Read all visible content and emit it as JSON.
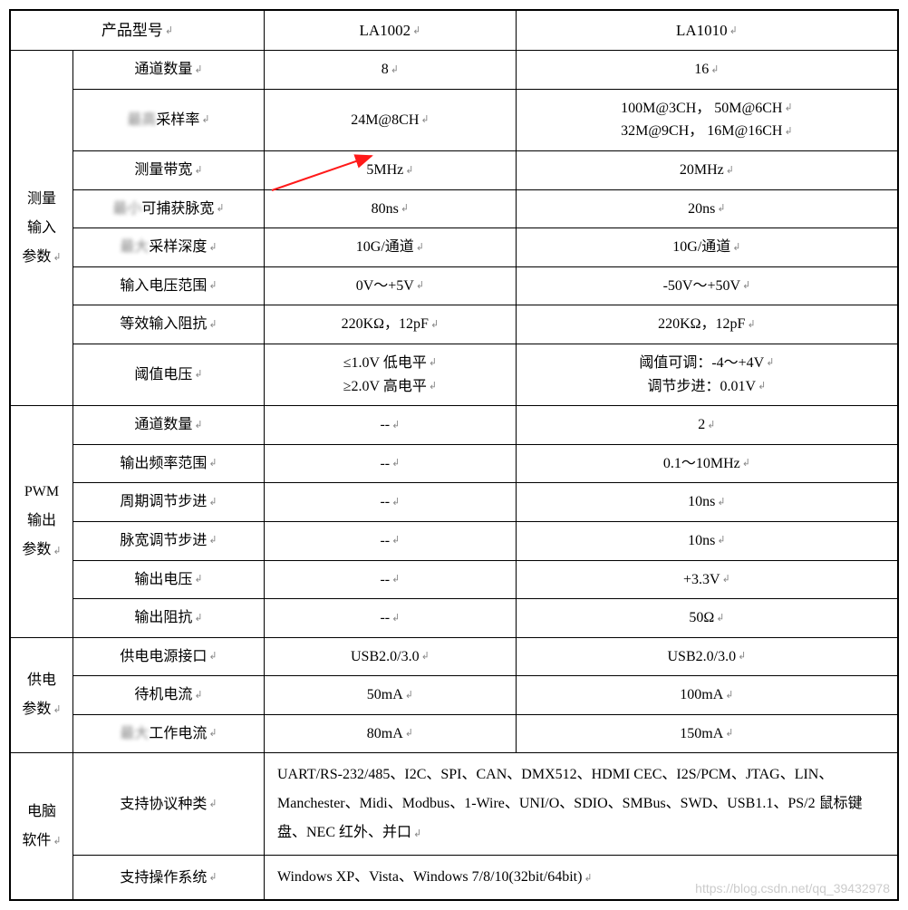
{
  "header": {
    "model_label": "产品型号",
    "model_a": "LA1002",
    "model_b": "LA1010"
  },
  "groups": {
    "measure": "测量\n输入\n参数",
    "pwm": "PWM\n输出\n参数",
    "power": "供电\n参数",
    "software": "电脑\n软件"
  },
  "rows": {
    "channels": {
      "label": "通道数量",
      "a": "8",
      "b": "16"
    },
    "sample_rate": {
      "prefix": "最高",
      "label": "采样率",
      "a": "24M@8CH",
      "b_l1": "100M@3CH， 50M@6CH",
      "b_l2": "32M@9CH， 16M@16CH"
    },
    "bandwidth": {
      "label": "测量带宽",
      "a": "5MHz",
      "b": "20MHz"
    },
    "pulse": {
      "prefix": "最小",
      "label": "可捕获脉宽",
      "a": "80ns",
      "b": "20ns"
    },
    "depth": {
      "prefix": "最大",
      "label": "采样深度",
      "a": "10G/通道",
      "b": "10G/通道"
    },
    "vin": {
      "label": "输入电压范围",
      "a": "0V～+5V",
      "b": "-50V～+50V"
    },
    "zin": {
      "label": "等效输入阻抗",
      "a": "220KΩ，12pF",
      "b": "220KΩ，12pF"
    },
    "threshold": {
      "label": "阈值电压",
      "a_l1": "≤1.0V 低电平",
      "a_l2": "≥2.0V 高电平",
      "b_l1": "阈值可调：-4～+4V",
      "b_l2": "调节步进：0.01V"
    },
    "pwm_ch": {
      "label": "通道数量",
      "a": "--",
      "b": "2"
    },
    "pwm_freq": {
      "label": "输出频率范围",
      "a": "--",
      "b": "0.1～10MHz"
    },
    "pwm_period": {
      "label": "周期调节步进",
      "a": "--",
      "b": "10ns"
    },
    "pwm_width": {
      "label": "脉宽调节步进",
      "a": "--",
      "b": "10ns"
    },
    "pwm_vout": {
      "label": "输出电压",
      "a": "--",
      "b": "+3.3V"
    },
    "pwm_zout": {
      "label": "输出阻抗",
      "a": "--",
      "b": "50Ω"
    },
    "pwr_port": {
      "label": "供电电源接口",
      "a": "USB2.0/3.0",
      "b": "USB2.0/3.0"
    },
    "pwr_idle": {
      "label": "待机电流",
      "a": "50mA",
      "b": "100mA"
    },
    "pwr_work": {
      "prefix": "最大",
      "label": "工作电流",
      "a": "80mA",
      "b": "150mA"
    },
    "protocols": {
      "label": "支持协议种类",
      "text": "UART/RS-232/485、I2C、SPI、CAN、DMX512、HDMI CEC、I2S/PCM、JTAG、LIN、Manchester、Midi、Modbus、1-Wire、UNI/O、SDIO、SMBus、SWD、USB1.1、PS/2 鼠标键盘、NEC 红外、并口"
    },
    "os": {
      "label": "支持操作系统",
      "text": "Windows XP、Vista、Windows 7/8/10(32bit/64bit)"
    }
  },
  "annotation": {
    "arrow_color": "#ff1a1a",
    "arrow_stroke": 2
  },
  "watermark": "https://blog.csdn.net/qq_39432978"
}
